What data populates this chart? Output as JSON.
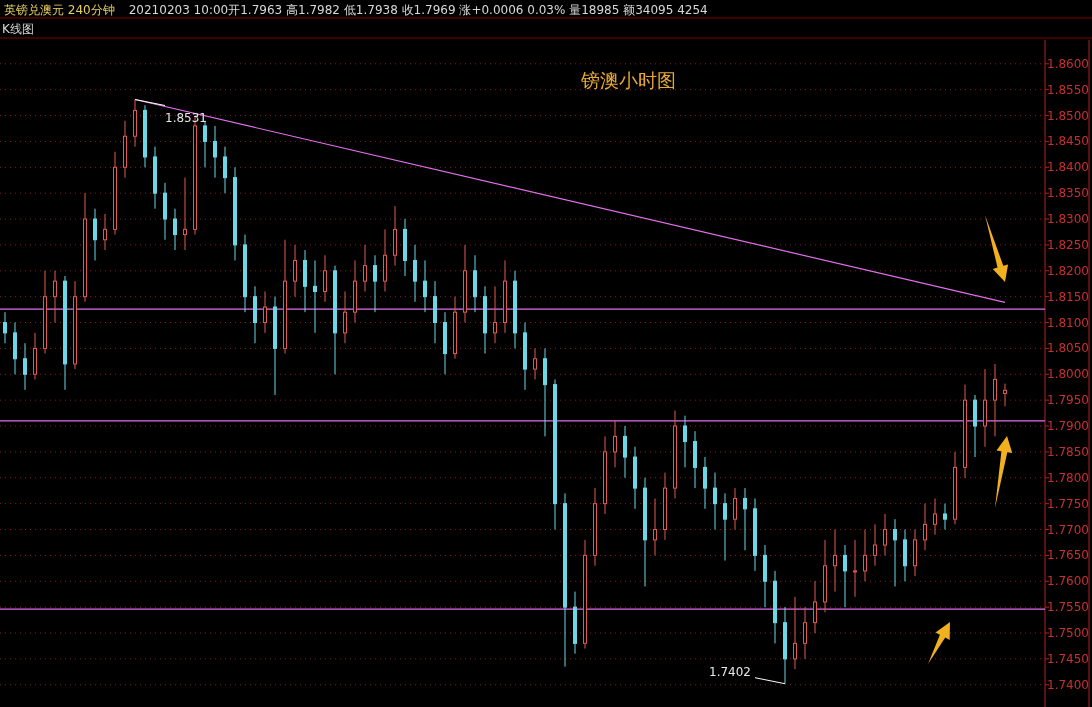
{
  "chart_data": {
    "type": "candlestick",
    "title": "镑澳小时图",
    "subtitle": "英镑兑澳元 240分钟",
    "annotations": [
      "20210203 10:00开1.7963 高1.7982 低1.7938 收1.7969 涨+0.0006 0.03% 量18985 额34095 4254",
      "K线图",
      "1.8531",
      "1.7402"
    ],
    "categories": [
      null,
      null,
      null,
      null,
      null,
      null,
      null,
      null,
      null,
      null,
      null,
      null,
      null,
      null,
      null,
      null,
      null,
      null,
      null,
      null,
      null,
      null,
      null,
      null,
      null,
      null,
      null,
      null,
      null,
      null,
      null,
      null,
      null,
      null,
      null,
      null,
      null,
      null,
      null,
      null,
      null,
      null,
      null,
      null,
      null,
      null,
      null,
      null,
      null,
      null,
      null,
      null,
      null,
      null,
      null,
      null,
      null,
      null,
      null,
      null,
      null,
      null,
      null,
      null,
      null,
      null,
      null,
      null,
      null,
      null,
      null,
      null,
      null,
      null,
      null,
      null,
      null,
      null,
      null,
      null,
      null,
      null,
      null,
      null,
      null,
      null,
      null,
      null,
      null,
      null,
      null,
      null,
      null,
      null,
      null,
      null,
      null,
      null,
      null,
      null,
      null
    ],
    "ohlc": [
      [
        1.81,
        1.812,
        1.806,
        1.808
      ],
      [
        1.808,
        1.81,
        1.8,
        1.803
      ],
      [
        1.803,
        1.806,
        1.797,
        1.8
      ],
      [
        1.8,
        1.808,
        1.799,
        1.805
      ],
      [
        1.805,
        1.82,
        1.804,
        1.815
      ],
      [
        1.815,
        1.82,
        1.81,
        1.818
      ],
      [
        1.818,
        1.819,
        1.797,
        1.802
      ],
      [
        1.802,
        1.818,
        1.801,
        1.815
      ],
      [
        1.815,
        1.835,
        1.814,
        1.83
      ],
      [
        1.83,
        1.832,
        1.822,
        1.826
      ],
      [
        1.826,
        1.831,
        1.824,
        1.828
      ],
      [
        1.828,
        1.843,
        1.827,
        1.84
      ],
      [
        1.84,
        1.849,
        1.838,
        1.846
      ],
      [
        1.846,
        1.8531,
        1.844,
        1.851
      ],
      [
        1.851,
        1.852,
        1.84,
        1.842
      ],
      [
        1.842,
        1.844,
        1.832,
        1.835
      ],
      [
        1.835,
        1.837,
        1.826,
        1.83
      ],
      [
        1.83,
        1.832,
        1.824,
        1.827
      ],
      [
        1.827,
        1.838,
        1.824,
        1.828
      ],
      [
        1.828,
        1.85,
        1.827,
        1.848
      ],
      [
        1.848,
        1.849,
        1.84,
        1.845
      ],
      [
        1.845,
        1.848,
        1.838,
        1.842
      ],
      [
        1.842,
        1.844,
        1.835,
        1.838
      ],
      [
        1.838,
        1.84,
        1.822,
        1.825
      ],
      [
        1.825,
        1.827,
        1.812,
        1.815
      ],
      [
        1.815,
        1.817,
        1.806,
        1.81
      ],
      [
        1.81,
        1.816,
        1.808,
        1.813
      ],
      [
        1.813,
        1.815,
        1.796,
        1.805
      ],
      [
        1.805,
        1.826,
        1.804,
        1.818
      ],
      [
        1.818,
        1.825,
        1.815,
        1.822
      ],
      [
        1.822,
        1.824,
        1.812,
        1.817
      ],
      [
        1.817,
        1.822,
        1.808,
        1.816
      ],
      [
        1.816,
        1.823,
        1.814,
        1.82
      ],
      [
        1.82,
        1.821,
        1.8,
        1.808
      ],
      [
        1.808,
        1.816,
        1.806,
        1.812
      ],
      [
        1.812,
        1.822,
        1.81,
        1.818
      ],
      [
        1.818,
        1.825,
        1.816,
        1.821
      ],
      [
        1.821,
        1.823,
        1.812,
        1.818
      ],
      [
        1.818,
        1.828,
        1.816,
        1.823
      ],
      [
        1.823,
        1.8325,
        1.821,
        1.828
      ],
      [
        1.828,
        1.83,
        1.819,
        1.822
      ],
      [
        1.822,
        1.825,
        1.814,
        1.818
      ],
      [
        1.818,
        1.822,
        1.812,
        1.815
      ],
      [
        1.815,
        1.818,
        1.806,
        1.81
      ],
      [
        1.81,
        1.812,
        1.8,
        1.804
      ],
      [
        1.804,
        1.815,
        1.803,
        1.812
      ],
      [
        1.812,
        1.825,
        1.81,
        1.82
      ],
      [
        1.82,
        1.823,
        1.812,
        1.815
      ],
      [
        1.815,
        1.817,
        1.804,
        1.808
      ],
      [
        1.808,
        1.817,
        1.806,
        1.81
      ],
      [
        1.81,
        1.822,
        1.808,
        1.818
      ],
      [
        1.818,
        1.82,
        1.805,
        1.808
      ],
      [
        1.808,
        1.81,
        1.797,
        1.801
      ],
      [
        1.801,
        1.805,
        1.799,
        1.803
      ],
      [
        1.803,
        1.805,
        1.788,
        1.798
      ],
      [
        1.798,
        1.799,
        1.77,
        1.775
      ],
      [
        1.775,
        1.777,
        1.7435,
        1.755
      ],
      [
        1.755,
        1.758,
        1.746,
        1.748
      ],
      [
        1.748,
        1.768,
        1.747,
        1.765
      ],
      [
        1.765,
        1.778,
        1.763,
        1.775
      ],
      [
        1.775,
        1.788,
        1.773,
        1.785
      ],
      [
        1.785,
        1.791,
        1.782,
        1.788
      ],
      [
        1.788,
        1.79,
        1.78,
        1.784
      ],
      [
        1.784,
        1.786,
        1.774,
        1.778
      ],
      [
        1.778,
        1.78,
        1.759,
        1.768
      ],
      [
        1.768,
        1.776,
        1.765,
        1.77
      ],
      [
        1.77,
        1.781,
        1.768,
        1.778
      ],
      [
        1.778,
        1.793,
        1.776,
        1.79
      ],
      [
        1.79,
        1.792,
        1.782,
        1.787
      ],
      [
        1.787,
        1.789,
        1.778,
        1.782
      ],
      [
        1.782,
        1.784,
        1.774,
        1.778
      ],
      [
        1.778,
        1.781,
        1.77,
        1.775
      ],
      [
        1.775,
        1.777,
        1.764,
        1.772
      ],
      [
        1.772,
        1.778,
        1.77,
        1.776
      ],
      [
        1.776,
        1.778,
        1.766,
        1.774
      ],
      [
        1.774,
        1.776,
        1.762,
        1.765
      ],
      [
        1.765,
        1.767,
        1.755,
        1.76
      ],
      [
        1.76,
        1.762,
        1.748,
        1.752
      ],
      [
        1.752,
        1.755,
        1.7402,
        1.745
      ],
      [
        1.745,
        1.757,
        1.743,
        1.748
      ],
      [
        1.748,
        1.755,
        1.745,
        1.752
      ],
      [
        1.752,
        1.76,
        1.75,
        1.756
      ],
      [
        1.756,
        1.768,
        1.754,
        1.763
      ],
      [
        1.763,
        1.77,
        1.758,
        1.765
      ],
      [
        1.765,
        1.767,
        1.755,
        1.762
      ],
      [
        1.762,
        1.768,
        1.757,
        1.762
      ],
      [
        1.762,
        1.77,
        1.76,
        1.765
      ],
      [
        1.765,
        1.771,
        1.763,
        1.767
      ],
      [
        1.767,
        1.773,
        1.765,
        1.77
      ],
      [
        1.77,
        1.772,
        1.759,
        1.768
      ],
      [
        1.768,
        1.77,
        1.76,
        1.763
      ],
      [
        1.763,
        1.77,
        1.761,
        1.768
      ],
      [
        1.768,
        1.775,
        1.766,
        1.771
      ],
      [
        1.771,
        1.776,
        1.769,
        1.773
      ],
      [
        1.773,
        1.775,
        1.77,
        1.772
      ],
      [
        1.772,
        1.785,
        1.771,
        1.782
      ],
      [
        1.782,
        1.798,
        1.78,
        1.795
      ],
      [
        1.795,
        1.796,
        1.784,
        1.79
      ],
      [
        1.79,
        1.801,
        1.786,
        1.795
      ],
      [
        1.795,
        1.802,
        1.788,
        1.799
      ],
      [
        1.7963,
        1.7982,
        1.7938,
        1.7969
      ]
    ],
    "series": [
      {
        "type": "line",
        "color": "#e070e8",
        "values": [
          null,
          null,
          null,
          null,
          null,
          null,
          null,
          null,
          null,
          null,
          null,
          null,
          null,
          1.8531,
          null,
          null,
          null,
          null,
          null,
          null,
          null,
          null,
          null,
          null,
          null,
          null,
          null,
          null,
          null,
          null,
          null,
          null,
          null,
          null,
          null,
          null,
          null,
          null,
          null,
          null,
          null,
          null,
          null,
          null,
          null,
          null,
          null,
          null,
          null,
          null,
          null,
          null,
          null,
          null,
          null,
          null,
          null,
          null,
          null,
          null,
          null,
          null,
          null,
          null,
          null,
          null,
          null,
          null,
          null,
          null,
          null,
          null,
          null,
          null,
          null,
          null,
          null,
          null,
          null,
          null,
          null,
          null,
          null,
          null,
          null,
          null,
          null,
          null,
          null,
          null,
          null,
          null,
          null,
          null,
          null,
          null,
          null,
          null,
          null,
          null,
          1.8139
        ]
      }
    ],
    "ref_lines": [
      {
        "axis": "y",
        "value": 1.8126,
        "color": "#e070e8"
      },
      {
        "axis": "y",
        "value": 1.791,
        "color": "#e070e8"
      },
      {
        "axis": "y",
        "value": 1.7546,
        "color": "#e070e8"
      }
    ],
    "ylim": [
      1.7357,
      1.8646
    ],
    "yticks": [
      {
        "value": 1.74,
        "label": "1.7400"
      },
      {
        "value": 1.745,
        "label": "1.7450"
      },
      {
        "value": 1.75,
        "label": "1.7500"
      },
      {
        "value": 1.755,
        "label": "1.7550"
      },
      {
        "value": 1.76,
        "label": "1.7600"
      },
      {
        "value": 1.765,
        "label": "1.7650"
      },
      {
        "value": 1.77,
        "label": "1.7700"
      },
      {
        "value": 1.775,
        "label": "1.7750"
      },
      {
        "value": 1.78,
        "label": "1.7800"
      },
      {
        "value": 1.785,
        "label": "1.7850"
      },
      {
        "value": 1.79,
        "label": "1.7900"
      },
      {
        "value": 1.795,
        "label": "1.7950"
      },
      {
        "value": 1.8,
        "label": "1.8000"
      },
      {
        "value": 1.805,
        "label": "1.8050"
      },
      {
        "value": 1.81,
        "label": "1.8100"
      },
      {
        "value": 1.815,
        "label": "1.8150"
      },
      {
        "value": 1.82,
        "label": "1.8200"
      },
      {
        "value": 1.825,
        "label": "1.8250"
      },
      {
        "value": 1.83,
        "label": "1.8300"
      },
      {
        "value": 1.835,
        "label": "1.8350"
      },
      {
        "value": 1.84,
        "label": "1.8400"
      },
      {
        "value": 1.845,
        "label": "1.8450"
      },
      {
        "value": 1.85,
        "label": "1.8500"
      },
      {
        "value": 1.855,
        "label": "1.8550"
      },
      {
        "value": 1.86,
        "label": "1.8600"
      }
    ],
    "grid": "y",
    "tick_labels": "y"
  }
}
